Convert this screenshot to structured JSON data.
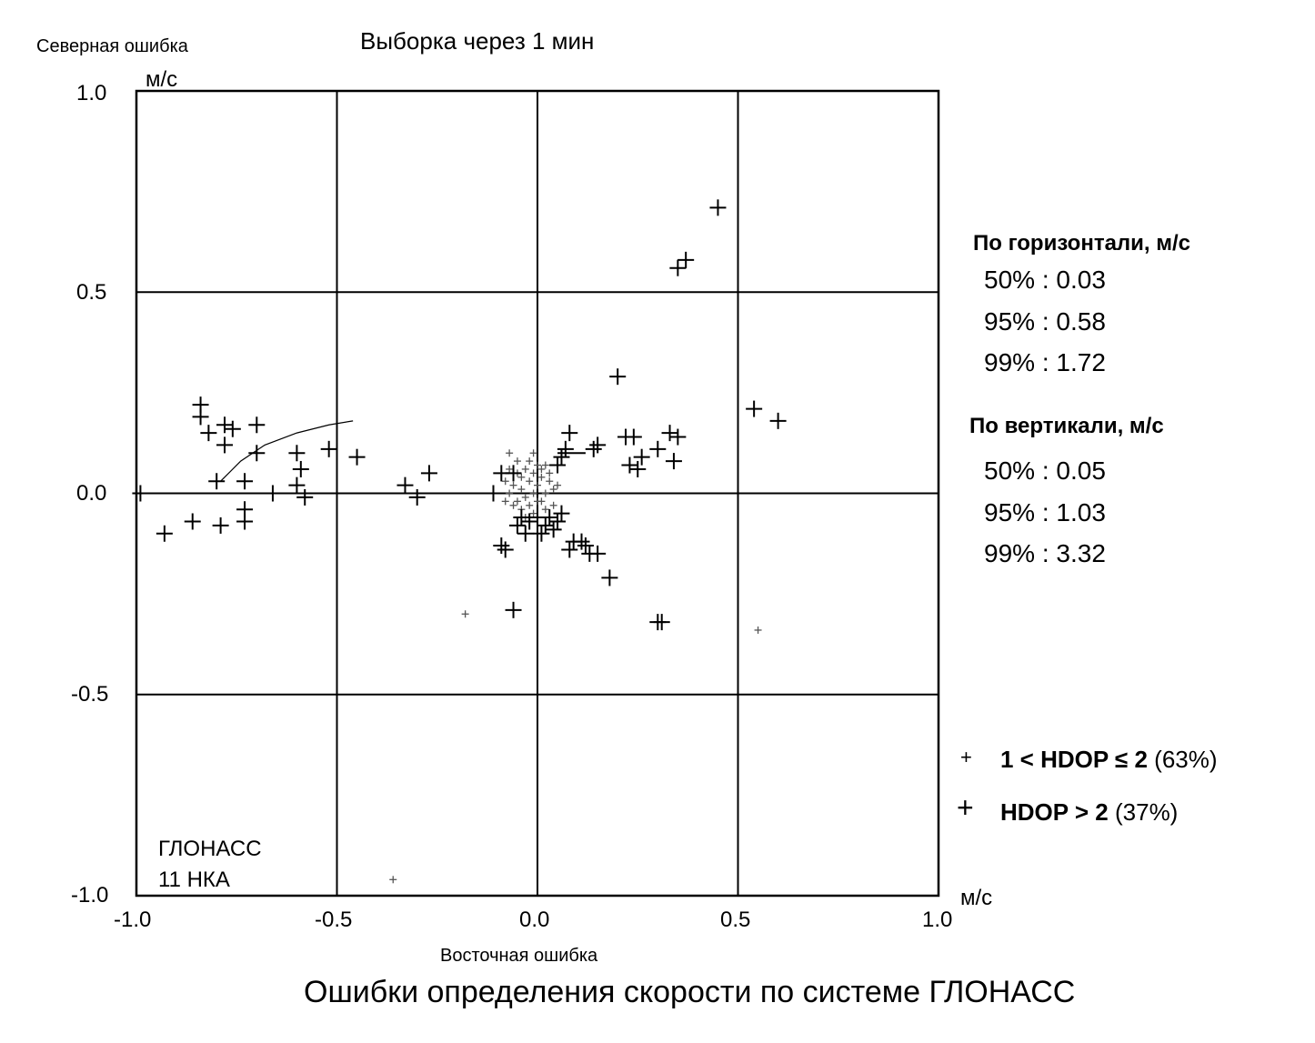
{
  "chart_data": {
    "type": "scatter",
    "title": "Выборка через 1 мин",
    "caption": "Ошибки определения скорости по системе ГЛОНАСС",
    "xlabel": "Восточная ошибка",
    "ylabel": "Северная ошибка",
    "x_unit": "м/с",
    "y_unit": "м/с",
    "xlim": [
      -1.0,
      1.0
    ],
    "ylim": [
      -1.0,
      1.0
    ],
    "x_ticks": [
      "-1.0",
      "-0.5",
      "0.0",
      "0.5",
      "1.0"
    ],
    "y_ticks": [
      "1.0",
      "0.5",
      "0.0",
      "-0.5",
      "-1.0"
    ],
    "grid": true,
    "annotation": [
      "ГЛОНАСС",
      "11 НКА"
    ],
    "legend_position": "right",
    "series": [
      {
        "name": "1 < HDOP ≤ 2",
        "label": "1 < HDOP ≤ 2",
        "percent": "(63%)",
        "marker": "small-plus",
        "points": [
          [
            -0.08,
            0.03
          ],
          [
            -0.07,
            0.06
          ],
          [
            -0.06,
            0.02
          ],
          [
            -0.05,
            0.05
          ],
          [
            -0.05,
            -0.02
          ],
          [
            -0.04,
            0.04
          ],
          [
            -0.04,
            0.01
          ],
          [
            -0.03,
            -0.01
          ],
          [
            -0.03,
            0.06
          ],
          [
            -0.02,
            0.03
          ],
          [
            -0.02,
            -0.03
          ],
          [
            -0.01,
            0.05
          ],
          [
            -0.01,
            0.0
          ],
          [
            0.0,
            0.02
          ],
          [
            0.0,
            -0.02
          ],
          [
            0.01,
            0.04
          ],
          [
            0.01,
            0.06
          ],
          [
            0.02,
            0.0
          ],
          [
            0.02,
            -0.04
          ],
          [
            0.03,
            0.03
          ],
          [
            0.03,
            0.05
          ],
          [
            0.04,
            0.01
          ],
          [
            -0.06,
            -0.03
          ],
          [
            -0.02,
            0.08
          ],
          [
            0.0,
            0.07
          ],
          [
            0.02,
            0.07
          ],
          [
            -0.07,
            0.0
          ],
          [
            -0.05,
            0.08
          ],
          [
            0.04,
            -0.03
          ],
          [
            -0.08,
            -0.02
          ],
          [
            -0.01,
            -0.05
          ],
          [
            0.01,
            -0.02
          ],
          [
            -0.18,
            -0.3
          ],
          [
            0.55,
            -0.34
          ],
          [
            -0.36,
            -0.96
          ],
          [
            -0.07,
            0.1
          ],
          [
            -0.01,
            0.1
          ],
          [
            -0.03,
            -0.06
          ],
          [
            0.05,
            0.02
          ],
          [
            -0.04,
            -0.04
          ]
        ]
      },
      {
        "name": "HDOP > 2",
        "label": "HDOP > 2",
        "percent": "(37%)",
        "marker": "large-plus",
        "points": [
          [
            -0.99,
            0.0
          ],
          [
            -0.93,
            -0.1
          ],
          [
            -0.86,
            -0.07
          ],
          [
            -0.84,
            0.22
          ],
          [
            -0.84,
            0.19
          ],
          [
            -0.82,
            0.15
          ],
          [
            -0.8,
            0.03
          ],
          [
            -0.79,
            -0.08
          ],
          [
            -0.78,
            0.17
          ],
          [
            -0.78,
            0.12
          ],
          [
            -0.76,
            0.16
          ],
          [
            -0.73,
            -0.07
          ],
          [
            -0.73,
            -0.04
          ],
          [
            -0.73,
            0.03
          ],
          [
            -0.7,
            0.17
          ],
          [
            -0.7,
            0.1
          ],
          [
            -0.66,
            0.0
          ],
          [
            -0.6,
            0.1
          ],
          [
            -0.6,
            0.02
          ],
          [
            -0.59,
            0.06
          ],
          [
            -0.58,
            -0.01
          ],
          [
            -0.52,
            0.11
          ],
          [
            -0.45,
            0.09
          ],
          [
            -0.33,
            0.02
          ],
          [
            -0.3,
            -0.01
          ],
          [
            -0.27,
            0.05
          ],
          [
            -0.11,
            0.0
          ],
          [
            -0.09,
            0.05
          ],
          [
            -0.08,
            -0.14
          ],
          [
            -0.09,
            -0.13
          ],
          [
            -0.06,
            -0.29
          ],
          [
            -0.06,
            0.05
          ],
          [
            -0.05,
            -0.08
          ],
          [
            -0.04,
            -0.06
          ],
          [
            -0.03,
            -0.1
          ],
          [
            -0.02,
            -0.07
          ],
          [
            0.0,
            -0.06
          ],
          [
            0.01,
            -0.1
          ],
          [
            0.02,
            -0.08
          ],
          [
            0.03,
            -0.06
          ],
          [
            0.04,
            -0.09
          ],
          [
            0.05,
            -0.07
          ],
          [
            0.06,
            -0.05
          ],
          [
            0.05,
            0.07
          ],
          [
            0.06,
            0.09
          ],
          [
            0.07,
            0.11
          ],
          [
            0.08,
            0.15
          ],
          [
            0.08,
            -0.14
          ],
          [
            0.09,
            -0.12
          ],
          [
            0.11,
            -0.12
          ],
          [
            0.12,
            -0.13
          ],
          [
            0.13,
            -0.15
          ],
          [
            0.14,
            0.11
          ],
          [
            0.15,
            0.12
          ],
          [
            0.15,
            -0.15
          ],
          [
            0.18,
            -0.21
          ],
          [
            0.2,
            0.29
          ],
          [
            0.22,
            0.14
          ],
          [
            0.23,
            0.07
          ],
          [
            0.24,
            0.14
          ],
          [
            0.25,
            0.06
          ],
          [
            0.26,
            0.09
          ],
          [
            0.3,
            0.11
          ],
          [
            0.3,
            -0.32
          ],
          [
            0.31,
            -0.32
          ],
          [
            0.33,
            0.15
          ],
          [
            0.34,
            0.08
          ],
          [
            0.35,
            0.14
          ],
          [
            0.35,
            0.56
          ],
          [
            0.37,
            0.58
          ],
          [
            0.45,
            0.71
          ],
          [
            0.54,
            0.21
          ],
          [
            0.6,
            0.18
          ]
        ]
      }
    ],
    "curve": [
      [
        -0.79,
        0.03
      ],
      [
        -0.74,
        0.08
      ],
      [
        -0.68,
        0.12
      ],
      [
        -0.6,
        0.15
      ],
      [
        -0.52,
        0.17
      ],
      [
        -0.46,
        0.18
      ]
    ],
    "line_segment": [
      [
        0.05,
        0.1
      ],
      [
        0.12,
        0.1
      ]
    ]
  },
  "stats": {
    "horizontal": {
      "heading": "По горизонтали, м/с",
      "rows": [
        {
          "pct": "50%",
          "sep": ":",
          "val": "0.03"
        },
        {
          "pct": "95%",
          "sep": ":",
          "val": "0.58"
        },
        {
          "pct": "99%",
          "sep": ":",
          "val": "1.72"
        }
      ]
    },
    "vertical": {
      "heading": "По вертикали, м/с",
      "rows": [
        {
          "pct": "50%",
          "sep": ":",
          "val": "0.05"
        },
        {
          "pct": "95%",
          "sep": ":",
          "val": "1.03"
        },
        {
          "pct": "99%",
          "sep": ":",
          "val": "3.32"
        }
      ]
    }
  }
}
